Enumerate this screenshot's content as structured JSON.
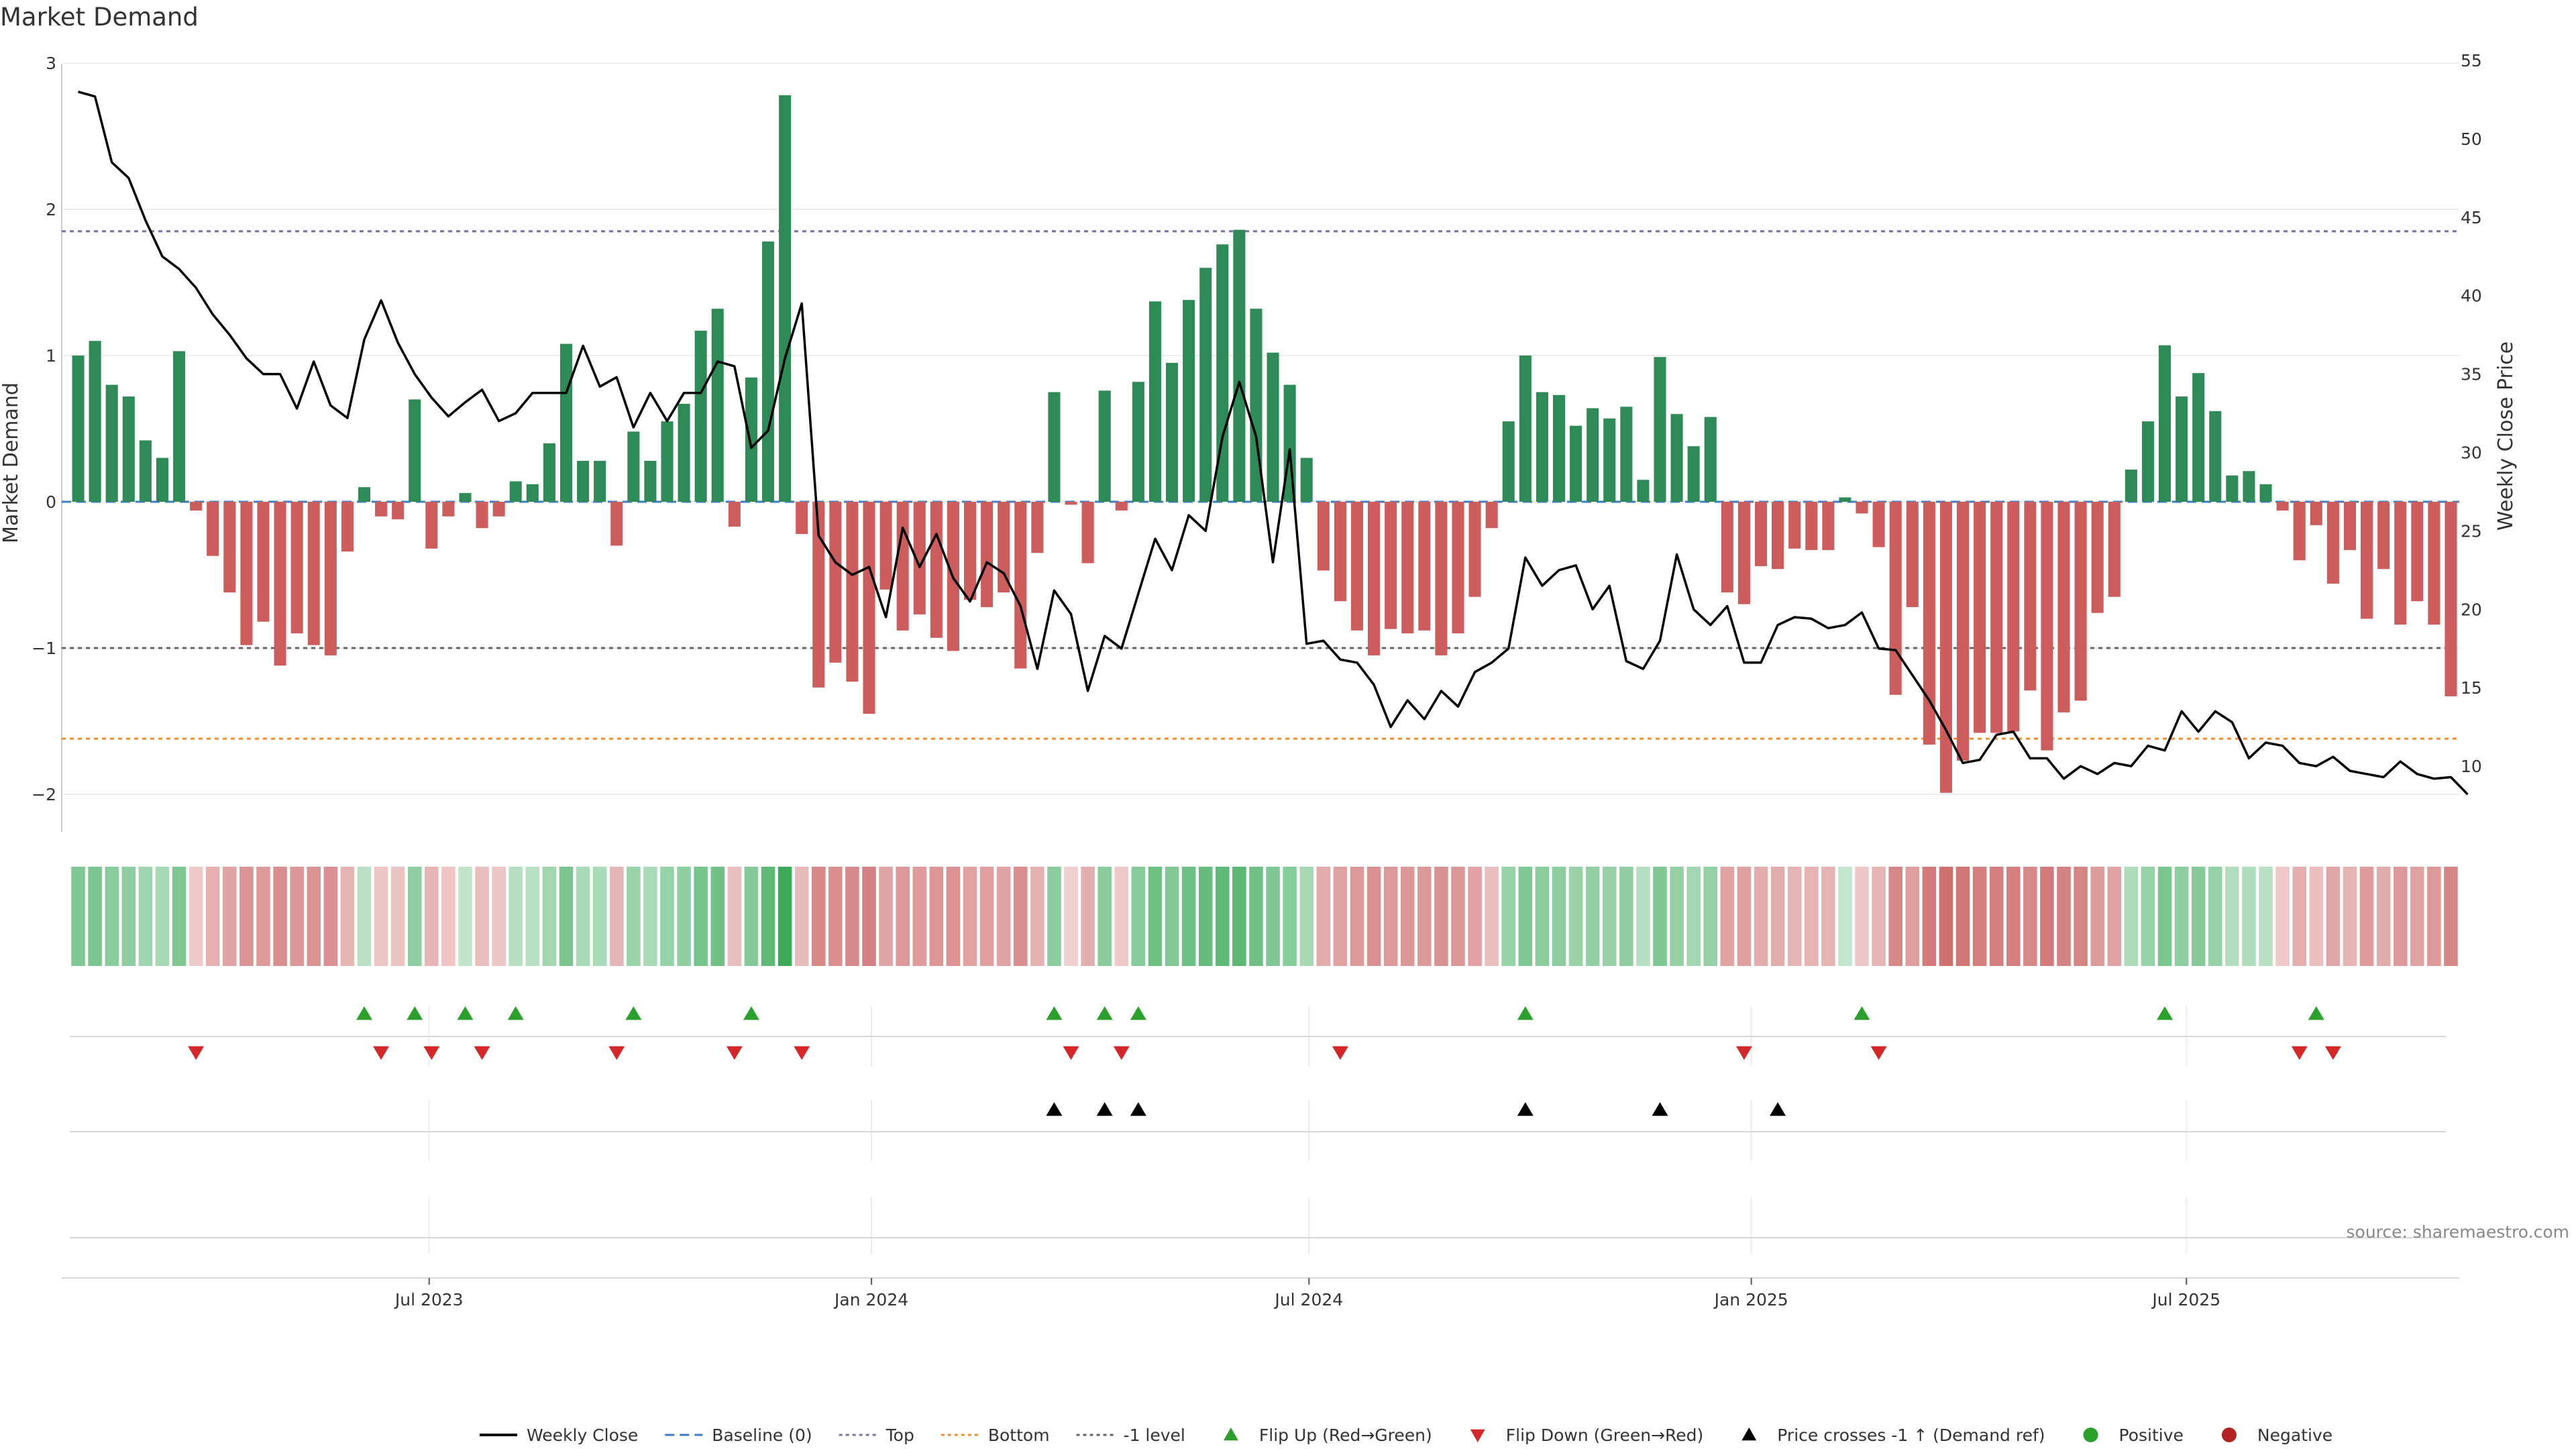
{
  "chart_data": {
    "type": "bar",
    "title": "Market Demand",
    "ylabel_left": "Market Demand",
    "ylabel_right": "Weekly Close Price",
    "y_left_range": [
      -2.25,
      3.0
    ],
    "y_left_ticks": [
      3,
      2,
      1,
      0,
      -1,
      -2
    ],
    "y_left_tick_labels": [
      "3",
      "2",
      "1",
      "0",
      "−1",
      "−2"
    ],
    "y_right_range": [
      8,
      55
    ],
    "y_right_ticks": [
      55,
      50,
      45,
      40,
      35,
      30,
      25,
      20,
      15,
      10
    ],
    "x_start": "2023-02-05",
    "x_step_days": 7,
    "x_end": "2025-11-20",
    "x_ticks": [
      {
        "date": "2023-07-01",
        "label": "Jul 2023"
      },
      {
        "date": "2024-01-01",
        "label": "Jan 2024"
      },
      {
        "date": "2024-07-01",
        "label": "Jul 2024"
      },
      {
        "date": "2025-01-01",
        "label": "Jan 2025"
      },
      {
        "date": "2025-07-01",
        "label": "Jul 2025"
      }
    ],
    "reference_lines": {
      "top": 1.85,
      "bottom": -1.62,
      "minus_one": -1.0,
      "baseline": 0
    },
    "demand": [
      1.0,
      1.1,
      0.8,
      0.72,
      0.42,
      0.3,
      1.03,
      -0.06,
      -0.37,
      -0.62,
      -0.98,
      -0.82,
      -1.12,
      -0.9,
      -0.98,
      -1.05,
      -0.34,
      0.1,
      -0.1,
      -0.12,
      0.7,
      -0.32,
      -0.1,
      0.06,
      -0.18,
      -0.1,
      0.14,
      0.12,
      0.4,
      1.08,
      0.28,
      0.28,
      -0.3,
      0.48,
      0.28,
      0.55,
      0.67,
      1.17,
      1.32,
      -0.17,
      0.85,
      1.78,
      2.78,
      -0.22,
      -1.27,
      -1.1,
      -1.23,
      -1.45,
      -0.6,
      -0.88,
      -0.77,
      -0.93,
      -1.02,
      -0.67,
      -0.72,
      -0.62,
      -1.14,
      -0.35,
      0.75,
      -0.02,
      -0.42,
      0.76,
      -0.06,
      0.82,
      1.37,
      0.95,
      1.38,
      1.6,
      1.76,
      1.86,
      1.32,
      1.02,
      0.8,
      0.3,
      -0.47,
      -0.68,
      -0.88,
      -1.05,
      -0.87,
      -0.9,
      -0.88,
      -1.05,
      -0.9,
      -0.65,
      -0.18,
      0.55,
      1.0,
      0.75,
      0.73,
      0.52,
      0.64,
      0.57,
      0.65,
      0.15,
      0.99,
      0.6,
      0.38,
      0.58,
      -0.62,
      -0.7,
      -0.44,
      -0.46,
      -0.32,
      -0.33,
      -0.33,
      0.03,
      -0.08,
      -0.31,
      -1.32,
      -0.72,
      -1.66,
      -1.99,
      -1.77,
      -1.58,
      -1.58,
      -1.57,
      -1.29,
      -1.7,
      -1.44,
      -1.36,
      -0.76,
      -0.65,
      0.22,
      0.55,
      1.07,
      0.72,
      0.88,
      0.62,
      0.18,
      0.21,
      0.12,
      -0.06,
      -0.4,
      -0.16,
      -0.56,
      -0.33,
      -0.8,
      -0.46,
      -0.84,
      -0.68,
      -0.84,
      -1.33
    ],
    "price": [
      53,
      52.7,
      48.5,
      47.5,
      44.8,
      42.5,
      41.7,
      40.5,
      38.8,
      37.5,
      36,
      35,
      35,
      32.8,
      35.8,
      33,
      32.2,
      37.2,
      39.7,
      37,
      35,
      33.5,
      32.3,
      33.2,
      34,
      32,
      32.5,
      33.8,
      33.8,
      33.8,
      36.8,
      34.2,
      34.8,
      31.6,
      33.8,
      32,
      33.8,
      33.8,
      35.8,
      35.5,
      30.3,
      31.4,
      36,
      39.5,
      24.7,
      23,
      22.2,
      22.7,
      19.5,
      25.2,
      22.7,
      24.8,
      22,
      20.5,
      23,
      22.3,
      20.2,
      16.2,
      21.2,
      19.7,
      14.8,
      18.3,
      17.5,
      21,
      24.5,
      22.5,
      26,
      25,
      31,
      34.5,
      31,
      23,
      30.2,
      17.8,
      18,
      16.8,
      16.6,
      15.2,
      12.5,
      14.2,
      13,
      14.8,
      13.8,
      16,
      16.6,
      17.5,
      23.3,
      21.5,
      22.5,
      22.8,
      20,
      21.5,
      16.7,
      16.2,
      18,
      23.5,
      20,
      19,
      20.2,
      16.6,
      16.6,
      19,
      19.5,
      19.4,
      18.8,
      19,
      19.8,
      17.5,
      17.4,
      15.8,
      14.2,
      12.3,
      10.2,
      10.4,
      12,
      12.2,
      10.5,
      10.5,
      9.2,
      10,
      9.5,
      10.2,
      10,
      11.3,
      11,
      13.5,
      12.2,
      13.5,
      12.8,
      10.5,
      11.5,
      11.3,
      10.2,
      10,
      10.6,
      9.7,
      9.5,
      9.3,
      10.3,
      9.5,
      9.2,
      9.3,
      8.2
    ],
    "flip_up_indices": [
      17,
      20,
      23,
      26,
      33,
      40,
      58,
      61,
      63,
      86,
      106,
      124,
      133
    ],
    "flip_down_indices": [
      7,
      18,
      21,
      24,
      32,
      39,
      43,
      59,
      62,
      75,
      99,
      107,
      132,
      134
    ],
    "price_cross_indices": [
      58,
      61,
      63,
      86,
      94,
      101
    ],
    "legend": [
      {
        "label": "Weekly Close",
        "kind": "line",
        "color": "#000000"
      },
      {
        "label": "Baseline (0)",
        "kind": "dash",
        "color": "#3b7dc4"
      },
      {
        "label": "Top",
        "kind": "dot",
        "color": "#7b6fa8"
      },
      {
        "label": "Bottom",
        "kind": "dot",
        "color": "#f28c28"
      },
      {
        "label": "-1 level",
        "kind": "dot",
        "color": "#666666"
      },
      {
        "label": "Flip Up (Red→Green)",
        "kind": "tri-up",
        "color": "#2ca02c"
      },
      {
        "label": "Flip Down (Green→Red)",
        "kind": "tri-down",
        "color": "#d62728"
      },
      {
        "label": "Price crosses -1 ↑ (Demand ref)",
        "kind": "tri-up",
        "color": "#000000"
      },
      {
        "label": "Positive",
        "kind": "circle",
        "color": "#2ca02c"
      },
      {
        "label": "Negative",
        "kind": "circle",
        "color": "#b22222"
      }
    ],
    "source": "source: sharemaestro.com"
  },
  "colors": {
    "positive_bar": "#2e8b57",
    "negative_bar": "#cd5c5c",
    "price_line": "#000000",
    "top_line": "#7b6fa8",
    "bottom_line": "#f28c28",
    "minus_one_line": "#666666",
    "baseline_line": "#3b7dc4",
    "flip_up": "#2ca02c",
    "flip_down": "#d62728",
    "price_cross": "#000000"
  }
}
